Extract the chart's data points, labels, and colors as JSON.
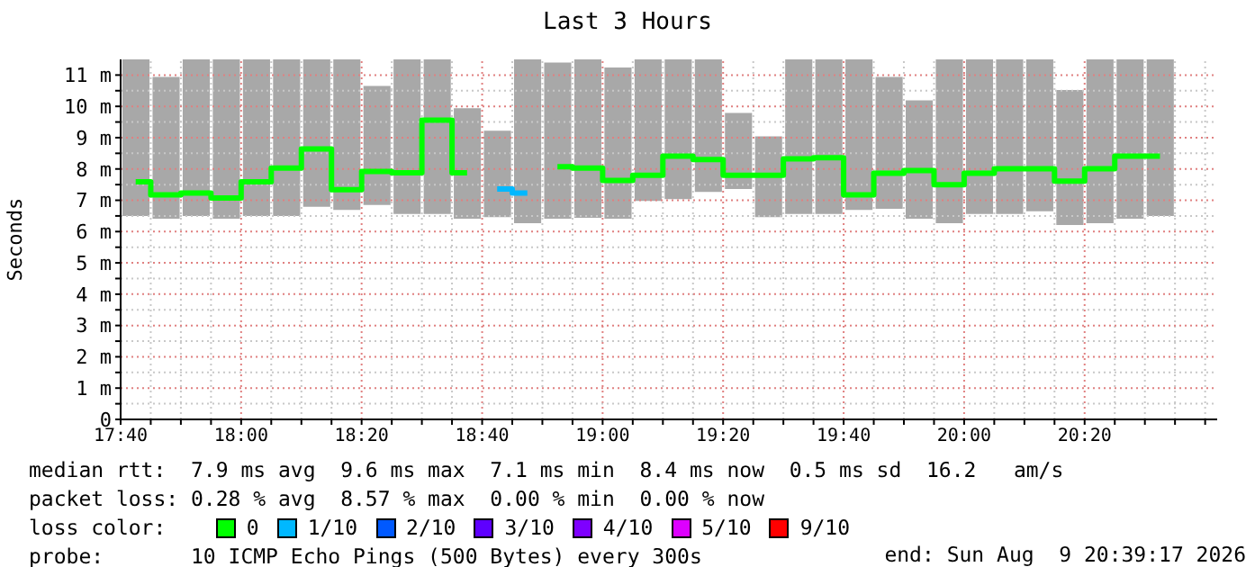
{
  "chart_data": {
    "type": "bar",
    "title": "Last 3 Hours",
    "ylabel": "Seconds",
    "legend_title": "loss color:",
    "x": [
      17.7083,
      17.7917,
      17.875,
      17.9583,
      18.0417,
      18.125,
      18.2083,
      18.2917,
      18.375,
      18.4583,
      18.5417,
      18.625,
      18.7083,
      18.7917,
      18.875,
      18.9583,
      19.0417,
      19.125,
      19.2083,
      19.2917,
      19.375,
      19.4583,
      19.5417,
      19.625,
      19.7083,
      19.7917,
      19.875,
      19.9583,
      20.0417,
      20.125,
      20.2083,
      20.2917,
      20.375,
      20.4583,
      20.5417
    ],
    "xlim": [
      17.6667,
      20.7
    ],
    "xticks": [
      {
        "value": 17.6667,
        "label": "17:40"
      },
      {
        "value": 17.75,
        "label": null
      },
      {
        "value": 17.8333,
        "label": null
      },
      {
        "value": 17.9167,
        "label": null
      },
      {
        "value": 18,
        "label": "18:00"
      },
      {
        "value": 18.0833,
        "label": null
      },
      {
        "value": 18.1667,
        "label": null
      },
      {
        "value": 18.25,
        "label": null
      },
      {
        "value": 18.3333,
        "label": "18:20"
      },
      {
        "value": 18.4167,
        "label": null
      },
      {
        "value": 18.5,
        "label": null
      },
      {
        "value": 18.5833,
        "label": null
      },
      {
        "value": 18.6667,
        "label": "18:40"
      },
      {
        "value": 18.75,
        "label": null
      },
      {
        "value": 18.8333,
        "label": null
      },
      {
        "value": 18.9167,
        "label": null
      },
      {
        "value": 19,
        "label": "19:00"
      },
      {
        "value": 19.0833,
        "label": null
      },
      {
        "value": 19.1667,
        "label": null
      },
      {
        "value": 19.25,
        "label": null
      },
      {
        "value": 19.3333,
        "label": "19:20"
      },
      {
        "value": 19.4167,
        "label": null
      },
      {
        "value": 19.5,
        "label": null
      },
      {
        "value": 19.5833,
        "label": null
      },
      {
        "value": 19.6667,
        "label": "19:40"
      },
      {
        "value": 19.75,
        "label": null
      },
      {
        "value": 19.8333,
        "label": null
      },
      {
        "value": 19.9167,
        "label": null
      },
      {
        "value": 20,
        "label": "20:00"
      },
      {
        "value": 20.0833,
        "label": null
      },
      {
        "value": 20.1667,
        "label": null
      },
      {
        "value": 20.25,
        "label": null
      },
      {
        "value": 20.3333,
        "label": "20:20"
      },
      {
        "value": 20.4167,
        "label": null
      },
      {
        "value": 20.5,
        "label": null
      },
      {
        "value": 20.5833,
        "label": null
      },
      {
        "value": 20.6667,
        "label": null
      }
    ],
    "ylim": [
      0,
      11.5
    ],
    "yticks": [
      0,
      {
        "value": 0.5,
        "label": null
      },
      {
        "value": 1,
        "label": "1 m"
      },
      {
        "value": 1.5,
        "label": null
      },
      {
        "value": 2,
        "label": "2 m"
      },
      {
        "value": 2.5,
        "label": null
      },
      {
        "value": 3,
        "label": "3 m"
      },
      {
        "value": 3.5,
        "label": null
      },
      {
        "value": 4,
        "label": "4 m"
      },
      {
        "value": 4.5,
        "label": null
      },
      {
        "value": 5,
        "label": "5 m"
      },
      {
        "value": 5.5,
        "label": null
      },
      {
        "value": 6,
        "label": "6 m"
      },
      {
        "value": 6.5,
        "label": null
      },
      {
        "value": 7,
        "label": "7 m"
      },
      {
        "value": 7.5,
        "label": null
      },
      {
        "value": 8,
        "label": "8 m"
      },
      {
        "value": 8.5,
        "label": null
      },
      {
        "value": 9,
        "label": "9 m"
      },
      {
        "value": 9.5,
        "label": null
      },
      {
        "value": 10,
        "label": "10 m"
      },
      {
        "value": 10.5,
        "label": null
      },
      {
        "value": 11,
        "label": "11 m"
      }
    ],
    "grid": true,
    "legend": "bottom",
    "series": [
      {
        "color": "#a8a8a8",
        "base": [
          6.5,
          6.41,
          6.5,
          6.41,
          6.5,
          6.5,
          6.79,
          6.69,
          6.85,
          6.56,
          6.56,
          6.41,
          6.46,
          6.27,
          6.41,
          6.44,
          6.41,
          6.98,
          7.04,
          7.27,
          7.36,
          6.46,
          6.56,
          6.56,
          6.69,
          6.73,
          6.41,
          6.27,
          6.56,
          6.56,
          6.65,
          6.21,
          6.27,
          6.41,
          6.5
        ],
        "values": [
          5.0,
          4.53,
          5.0,
          5.09,
          5.0,
          5.0,
          4.71,
          4.81,
          3.8,
          4.94,
          4.94,
          3.53,
          2.76,
          5.23,
          4.99,
          5.06,
          4.83,
          4.52,
          4.46,
          4.23,
          2.43,
          2.58,
          4.94,
          4.94,
          4.81,
          4.21,
          3.78,
          5.23,
          4.94,
          4.94,
          4.85,
          4.31,
          5.23,
          5.09,
          5.0
        ]
      },
      {
        "type": "step",
        "name": "0",
        "color": "#00ff00",
        "values": [
          7.59,
          7.17,
          7.23,
          7.07,
          7.59,
          8.03,
          8.64,
          7.34,
          7.92,
          7.88,
          9.56,
          7.88,
          null,
          null,
          8.07,
          8.03,
          7.63,
          7.8,
          8.41,
          8.3,
          7.8,
          7.8,
          8.32,
          8.36,
          7.17,
          7.86,
          7.95,
          7.5,
          7.86,
          8.01,
          8.01,
          7.61,
          8.01,
          8.41,
          8.41
        ]
      },
      {
        "type": "step",
        "name": "1/10",
        "color": "#00b8ff",
        "values": [
          null,
          null,
          null,
          null,
          null,
          null,
          null,
          null,
          null,
          null,
          null,
          null,
          7.36,
          7.23,
          null,
          null,
          null,
          null,
          null,
          null,
          null,
          null,
          null,
          null,
          null,
          null,
          null,
          null,
          null,
          null,
          null,
          null,
          null,
          null,
          null
        ]
      },
      {
        "type": "step",
        "name": "2/10",
        "color": "#0059ff",
        "values": [
          null,
          null,
          null,
          null,
          null,
          null,
          null,
          null,
          null,
          null,
          null,
          null,
          null,
          null,
          null,
          null,
          null,
          null,
          null,
          null,
          null,
          null,
          null,
          null,
          null,
          null,
          null,
          null,
          null,
          null,
          null,
          null,
          null,
          null,
          null
        ]
      },
      {
        "type": "step",
        "name": "3/10",
        "color": "#5e00ff",
        "values": [
          null,
          null,
          null,
          null,
          null,
          null,
          null,
          null,
          null,
          null,
          null,
          null,
          null,
          null,
          null,
          null,
          null,
          null,
          null,
          null,
          null,
          null,
          null,
          null,
          null,
          null,
          null,
          null,
          null,
          null,
          null,
          null,
          null,
          null,
          null
        ]
      },
      {
        "type": "step",
        "name": "4/10",
        "color": "#7e00ff",
        "values": [
          null,
          null,
          null,
          null,
          null,
          null,
          null,
          null,
          null,
          null,
          null,
          null,
          null,
          null,
          null,
          null,
          null,
          null,
          null,
          null,
          null,
          null,
          null,
          null,
          null,
          null,
          null,
          null,
          null,
          null,
          null,
          null,
          null,
          null,
          null
        ]
      },
      {
        "type": "step",
        "name": "5/10",
        "color": "#dd00ff",
        "values": [
          null,
          null,
          null,
          null,
          null,
          null,
          null,
          null,
          null,
          null,
          null,
          null,
          null,
          null,
          null,
          null,
          null,
          null,
          null,
          null,
          null,
          null,
          null,
          null,
          null,
          null,
          null,
          null,
          null,
          null,
          null,
          null,
          null,
          null,
          null
        ]
      },
      {
        "type": "step",
        "name": "9/10",
        "color": "#ff0000",
        "values": [
          null,
          null,
          null,
          null,
          null,
          null,
          null,
          null,
          null,
          null,
          null,
          null,
          null,
          null,
          null,
          null,
          null,
          null,
          null,
          null,
          null,
          null,
          null,
          null,
          null,
          null,
          null,
          null,
          null,
          null,
          null,
          null,
          null,
          null,
          null
        ]
      }
    ],
    "annotations": [
      "median rtt:  7.9 ms avg  9.6 ms max  7.1 ms min  8.4 ms now  0.5 ms sd  16.2   am/s",
      "packet loss: 0.28 % avg  8.57 % max  0.00 % min  0.00 % now",
      "probe:       10 ICMP Echo Pings (500 Bytes) every 300s",
      "end: Sun Aug  9 20:39:17 2026"
    ]
  }
}
